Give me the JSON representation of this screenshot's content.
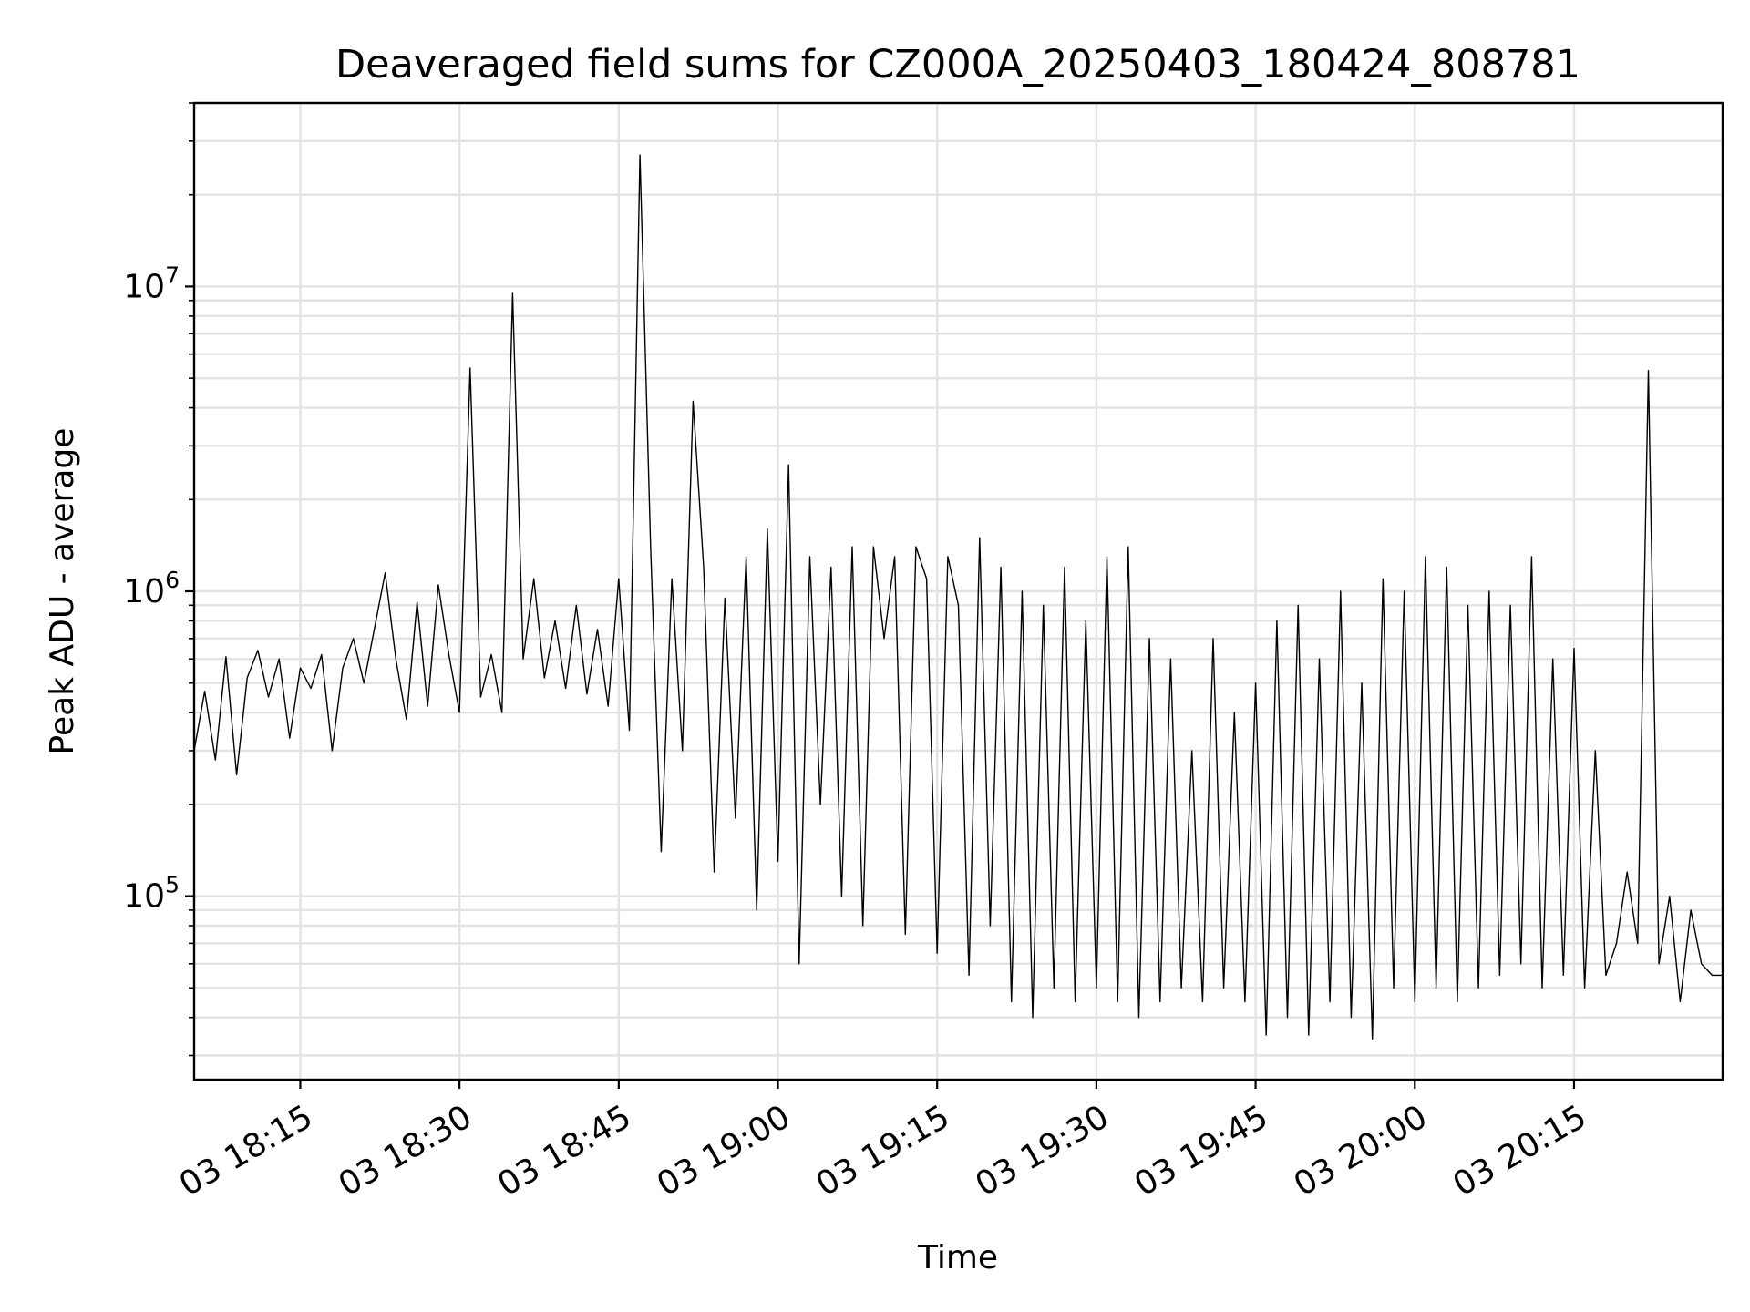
{
  "chart_data": {
    "type": "line",
    "title": "Deaveraged field sums for CZ000A_20250403_180424_808781",
    "xlabel": "Time",
    "ylabel": "Peak ADU - average",
    "yscale": "log",
    "grid": true,
    "xlim": [
      "2025-04-03 18:05",
      "2025-04-03 20:29"
    ],
    "ylim": [
      25000,
      40000000
    ],
    "x_ticks": [
      "03 18:15",
      "03 18:30",
      "03 18:45",
      "03 19:00",
      "03 19:15",
      "03 19:30",
      "03 19:45",
      "03 20:00",
      "03 20:15"
    ],
    "y_ticks": [
      {
        "base": "10",
        "exp": "5",
        "value": 100000
      },
      {
        "base": "10",
        "exp": "6",
        "value": 1000000
      },
      {
        "base": "10",
        "exp": "7",
        "value": 10000000
      }
    ],
    "series": [
      {
        "color": "#000000",
        "points": [
          [
            "18:05",
            300000
          ],
          [
            "18:06",
            470000
          ],
          [
            "18:07",
            280000
          ],
          [
            "18:08",
            610000
          ],
          [
            "18:09",
            250000
          ],
          [
            "18:10",
            520000
          ],
          [
            "18:11",
            640000
          ],
          [
            "18:12",
            450000
          ],
          [
            "18:13",
            600000
          ],
          [
            "18:14",
            330000
          ],
          [
            "18:15",
            560000
          ],
          [
            "18:16",
            480000
          ],
          [
            "18:17",
            620000
          ],
          [
            "18:18",
            300000
          ],
          [
            "18:19",
            560000
          ],
          [
            "18:20",
            700000
          ],
          [
            "18:21",
            500000
          ],
          [
            "18:22",
            760000
          ],
          [
            "18:23",
            1150000
          ],
          [
            "18:24",
            600000
          ],
          [
            "18:25",
            380000
          ],
          [
            "18:26",
            920000
          ],
          [
            "18:27",
            420000
          ],
          [
            "18:28",
            1050000
          ],
          [
            "18:29",
            620000
          ],
          [
            "18:30",
            400000
          ],
          [
            "18:31",
            5400000
          ],
          [
            "18:32",
            450000
          ],
          [
            "18:33",
            620000
          ],
          [
            "18:34",
            400000
          ],
          [
            "18:35",
            9500000
          ],
          [
            "18:36",
            600000
          ],
          [
            "18:37",
            1100000
          ],
          [
            "18:38",
            520000
          ],
          [
            "18:39",
            800000
          ],
          [
            "18:40",
            480000
          ],
          [
            "18:41",
            900000
          ],
          [
            "18:42",
            460000
          ],
          [
            "18:43",
            750000
          ],
          [
            "18:44",
            420000
          ],
          [
            "18:45",
            1100000
          ],
          [
            "18:46",
            350000
          ],
          [
            "18:47",
            27000000
          ],
          [
            "18:48",
            1400000
          ],
          [
            "18:49",
            140000
          ],
          [
            "18:50",
            1100000
          ],
          [
            "18:51",
            300000
          ],
          [
            "18:52",
            4200000
          ],
          [
            "18:53",
            1200000
          ],
          [
            "18:54",
            120000
          ],
          [
            "18:55",
            950000
          ],
          [
            "18:56",
            180000
          ],
          [
            "18:57",
            1300000
          ],
          [
            "18:58",
            90000
          ],
          [
            "18:59",
            1600000
          ],
          [
            "19:00",
            130000
          ],
          [
            "19:01",
            2600000
          ],
          [
            "19:02",
            60000
          ],
          [
            "19:03",
            1300000
          ],
          [
            "19:04",
            200000
          ],
          [
            "19:05",
            1200000
          ],
          [
            "19:06",
            100000
          ],
          [
            "19:07",
            1400000
          ],
          [
            "19:08",
            80000
          ],
          [
            "19:09",
            1400000
          ],
          [
            "19:10",
            700000
          ],
          [
            "19:11",
            1300000
          ],
          [
            "19:12",
            75000
          ],
          [
            "19:13",
            1400000
          ],
          [
            "19:14",
            1100000
          ],
          [
            "19:15",
            65000
          ],
          [
            "19:16",
            1300000
          ],
          [
            "19:17",
            900000
          ],
          [
            "19:18",
            55000
          ],
          [
            "19:19",
            1500000
          ],
          [
            "19:20",
            80000
          ],
          [
            "19:21",
            1200000
          ],
          [
            "19:22",
            45000
          ],
          [
            "19:23",
            1000000
          ],
          [
            "19:24",
            40000
          ],
          [
            "19:25",
            900000
          ],
          [
            "19:26",
            50000
          ],
          [
            "19:27",
            1200000
          ],
          [
            "19:28",
            45000
          ],
          [
            "19:29",
            800000
          ],
          [
            "19:30",
            50000
          ],
          [
            "19:31",
            1300000
          ],
          [
            "19:32",
            45000
          ],
          [
            "19:33",
            1400000
          ],
          [
            "19:34",
            40000
          ],
          [
            "19:35",
            700000
          ],
          [
            "19:36",
            45000
          ],
          [
            "19:37",
            600000
          ],
          [
            "19:38",
            50000
          ],
          [
            "19:39",
            300000
          ],
          [
            "19:40",
            45000
          ],
          [
            "19:41",
            700000
          ],
          [
            "19:42",
            50000
          ],
          [
            "19:43",
            400000
          ],
          [
            "19:44",
            45000
          ],
          [
            "19:45",
            500000
          ],
          [
            "19:46",
            35000
          ],
          [
            "19:47",
            800000
          ],
          [
            "19:48",
            40000
          ],
          [
            "19:49",
            900000
          ],
          [
            "19:50",
            35000
          ],
          [
            "19:51",
            600000
          ],
          [
            "19:52",
            45000
          ],
          [
            "19:53",
            1000000
          ],
          [
            "19:54",
            40000
          ],
          [
            "19:55",
            500000
          ],
          [
            "19:56",
            34000
          ],
          [
            "19:57",
            1100000
          ],
          [
            "19:58",
            50000
          ],
          [
            "19:59",
            1000000
          ],
          [
            "20:00",
            45000
          ],
          [
            "20:01",
            1300000
          ],
          [
            "20:02",
            50000
          ],
          [
            "20:03",
            1200000
          ],
          [
            "20:04",
            45000
          ],
          [
            "20:05",
            900000
          ],
          [
            "20:06",
            50000
          ],
          [
            "20:07",
            1000000
          ],
          [
            "20:08",
            55000
          ],
          [
            "20:09",
            900000
          ],
          [
            "20:10",
            60000
          ],
          [
            "20:11",
            1300000
          ],
          [
            "20:12",
            50000
          ],
          [
            "20:13",
            600000
          ],
          [
            "20:14",
            55000
          ],
          [
            "20:15",
            650000
          ],
          [
            "20:16",
            50000
          ],
          [
            "20:17",
            300000
          ],
          [
            "20:18",
            55000
          ],
          [
            "20:19",
            70000
          ],
          [
            "20:20",
            120000
          ],
          [
            "20:21",
            70000
          ],
          [
            "20:22",
            5300000
          ],
          [
            "20:23",
            60000
          ],
          [
            "20:24",
            100000
          ],
          [
            "20:25",
            45000
          ],
          [
            "20:26",
            90000
          ],
          [
            "20:27",
            60000
          ],
          [
            "20:28",
            55000
          ],
          [
            "20:29",
            55000
          ]
        ]
      }
    ]
  }
}
